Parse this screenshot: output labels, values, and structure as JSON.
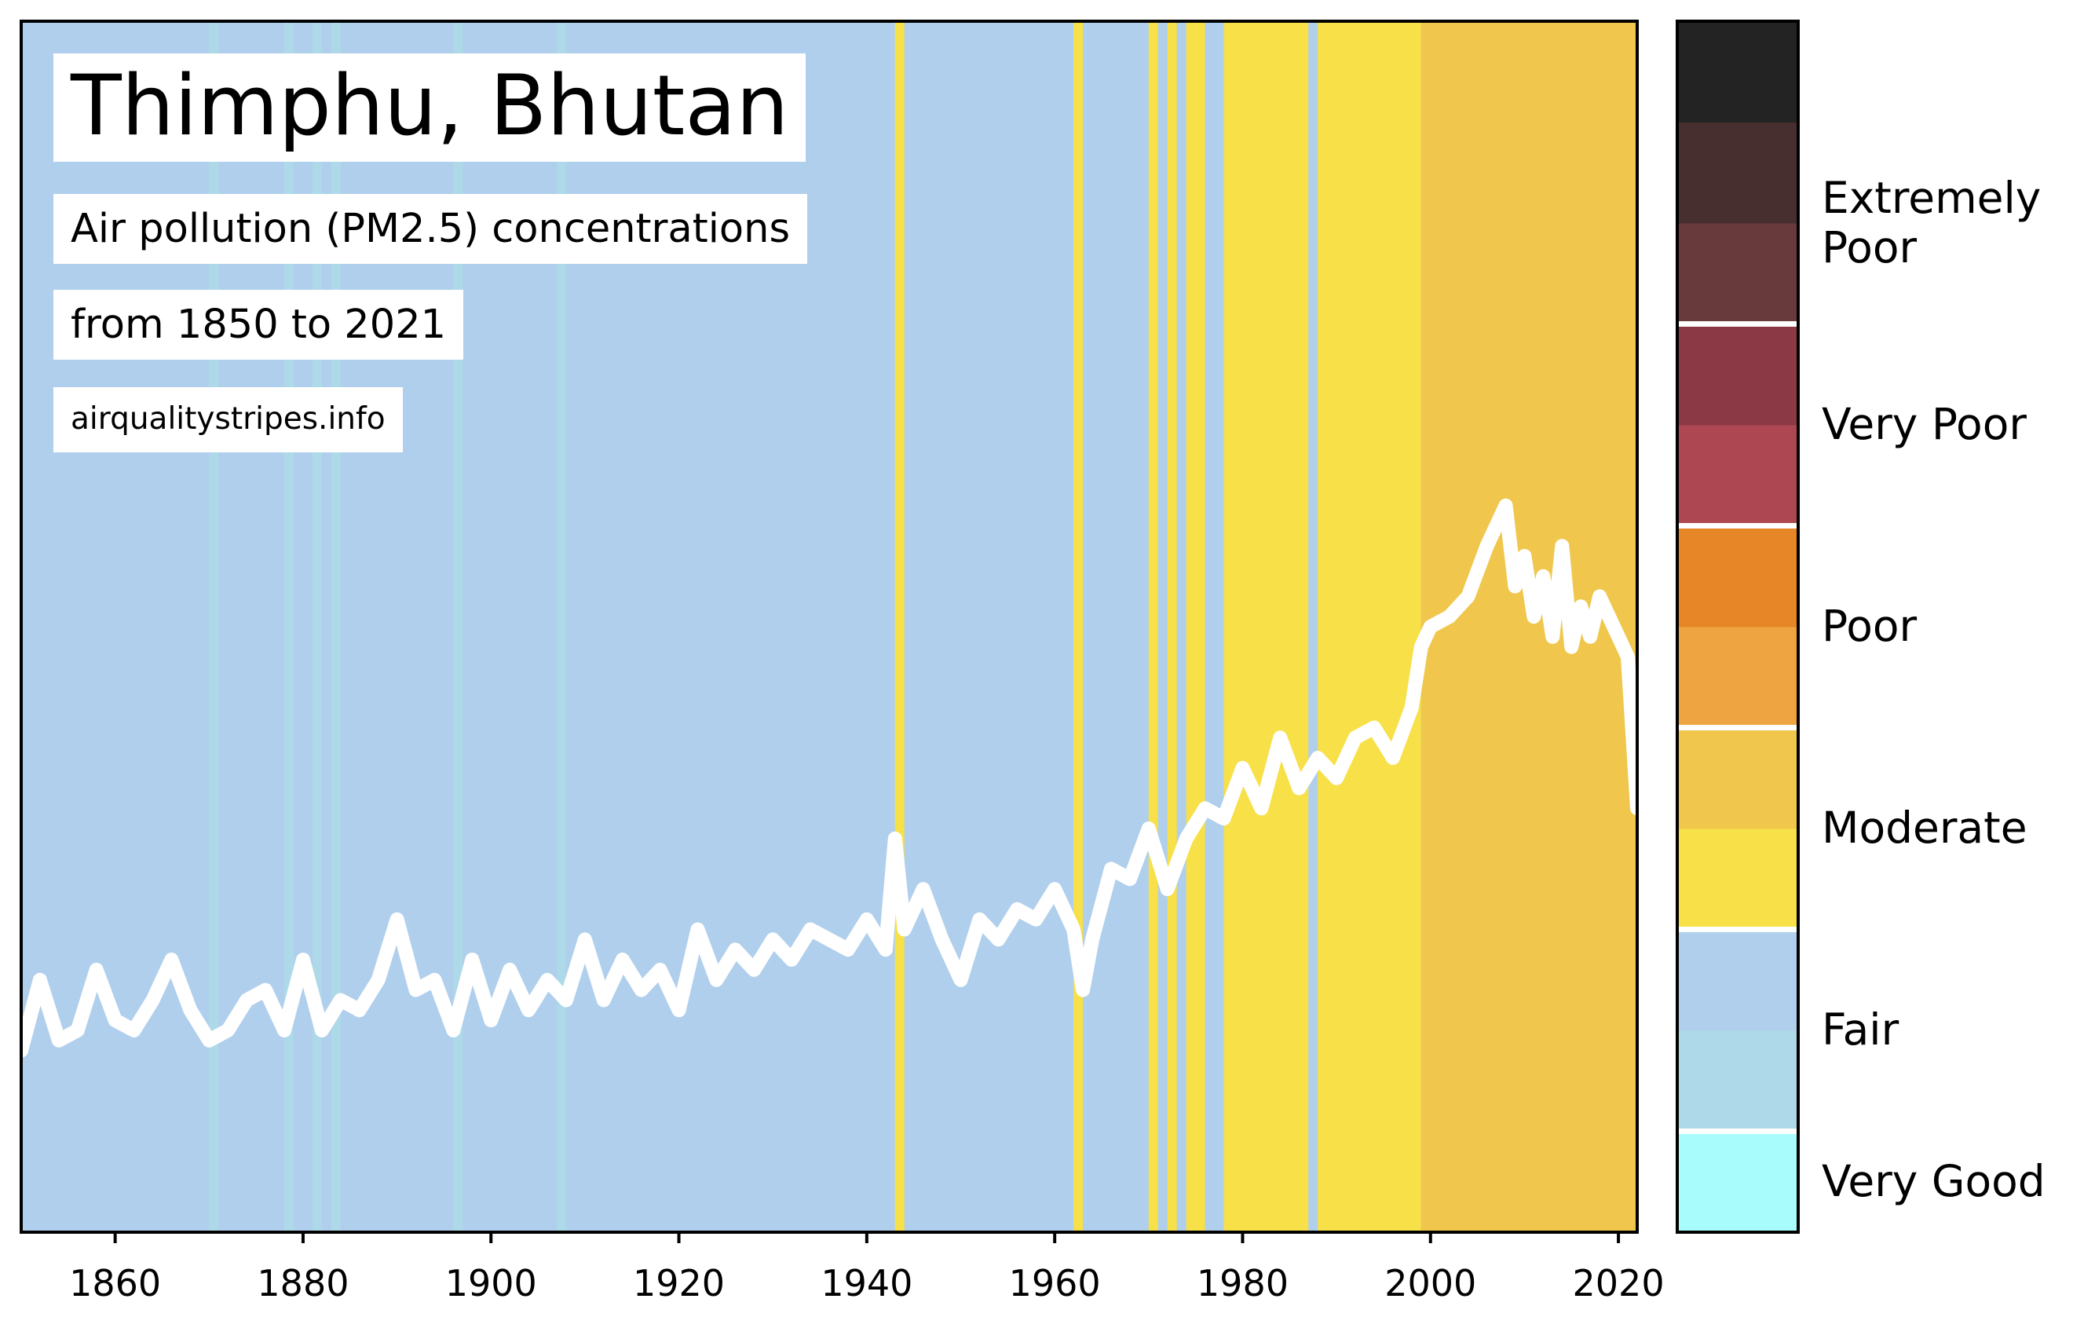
{
  "title": "Thimphu, Bhutan",
  "subtitle": "Air pollution (PM2.5) concentrations",
  "range_text": "from 1850 to 2021",
  "source": "airqualitystripes.info",
  "chart_data": {
    "type": "heatmap",
    "description_units": "PM2.5 concentration category stripes per year with overlaid white trend line",
    "x_range": [
      1850,
      2022
    ],
    "x_ticks": [
      "1860",
      "1880",
      "1900",
      "1920",
      "1940",
      "1960",
      "1980",
      "2000",
      "2020"
    ],
    "grid": false,
    "legend_position": "right",
    "stripes": [
      {
        "from": 1850,
        "to": 2022,
        "category": "Fair"
      },
      {
        "from": 1870,
        "to": 1871,
        "category": "Very Good light"
      },
      {
        "from": 1878,
        "to": 1879,
        "category": "Very Good light"
      },
      {
        "from": 1881,
        "to": 1882,
        "category": "Very Good light"
      },
      {
        "from": 1883,
        "to": 1884,
        "category": "Very Good light"
      },
      {
        "from": 1896,
        "to": 1897,
        "category": "Very Good light"
      },
      {
        "from": 1907,
        "to": 1908,
        "category": "Very Good light"
      },
      {
        "from": 1943,
        "to": 1944,
        "category": "Moderate low"
      },
      {
        "from": 1962,
        "to": 1963,
        "category": "Moderate low"
      },
      {
        "from": 1970,
        "to": 1971,
        "category": "Moderate low"
      },
      {
        "from": 1972,
        "to": 1973,
        "category": "Moderate low"
      },
      {
        "from": 1974,
        "to": 1976,
        "category": "Moderate low"
      },
      {
        "from": 1978,
        "to": 1987,
        "category": "Moderate low"
      },
      {
        "from": 1988,
        "to": 1999,
        "category": "Moderate low"
      },
      {
        "from": 1999,
        "to": 2022,
        "category": "Moderate high"
      }
    ],
    "line": {
      "x": [
        1850,
        1852,
        1854,
        1856,
        1858,
        1860,
        1862,
        1864,
        1866,
        1868,
        1870,
        1872,
        1874,
        1876,
        1878,
        1880,
        1882,
        1884,
        1886,
        1888,
        1890,
        1892,
        1894,
        1896,
        1898,
        1900,
        1902,
        1904,
        1906,
        1908,
        1910,
        1912,
        1914,
        1916,
        1918,
        1920,
        1922,
        1924,
        1926,
        1928,
        1930,
        1932,
        1934,
        1936,
        1938,
        1940,
        1942,
        1943,
        1944,
        1946,
        1948,
        1950,
        1952,
        1954,
        1956,
        1958,
        1960,
        1962,
        1963,
        1964,
        1966,
        1968,
        1970,
        1972,
        1974,
        1976,
        1978,
        1980,
        1982,
        1984,
        1986,
        1988,
        1990,
        1992,
        1994,
        1996,
        1998,
        1999,
        2000,
        2002,
        2004,
        2006,
        2008,
        2009,
        2010,
        2011,
        2012,
        2013,
        2014,
        2015,
        2016,
        2017,
        2018,
        2019,
        2020,
        2021,
        2022
      ],
      "y": [
        0.9,
        1.25,
        0.95,
        1.0,
        1.3,
        1.05,
        1.0,
        1.15,
        1.35,
        1.1,
        0.95,
        1.0,
        1.15,
        1.2,
        1.0,
        1.35,
        1.0,
        1.15,
        1.1,
        1.25,
        1.55,
        1.2,
        1.25,
        1.0,
        1.35,
        1.05,
        1.3,
        1.1,
        1.25,
        1.15,
        1.45,
        1.15,
        1.35,
        1.2,
        1.3,
        1.1,
        1.5,
        1.25,
        1.4,
        1.3,
        1.45,
        1.35,
        1.5,
        1.45,
        1.4,
        1.55,
        1.4,
        1.95,
        1.5,
        1.7,
        1.45,
        1.25,
        1.55,
        1.45,
        1.6,
        1.55,
        1.7,
        1.5,
        1.2,
        1.45,
        1.8,
        1.75,
        2.0,
        1.7,
        1.95,
        2.1,
        2.05,
        2.3,
        2.1,
        2.45,
        2.2,
        2.35,
        2.25,
        2.45,
        2.5,
        2.35,
        2.6,
        2.9,
        3.0,
        3.05,
        3.15,
        3.4,
        3.6,
        3.2,
        3.35,
        3.05,
        3.25,
        2.95,
        3.4,
        2.9,
        3.1,
        2.95,
        3.15,
        3.05,
        2.95,
        2.85,
        2.1
      ]
    },
    "colorbar": {
      "categories": [
        "Very Good",
        "Fair",
        "Moderate",
        "Poor",
        "Very Poor",
        "Extremely Poor"
      ],
      "colors": [
        "#a8fdfc",
        "#aed9e8",
        "#b0cfec",
        "#f7e048",
        "#f0c74c",
        "#efa442",
        "#e78626",
        "#ad4852",
        "#8b3945",
        "#693a3b",
        "#472e2f",
        "#232323"
      ]
    },
    "colors": {
      "Fair": "#b0cfec",
      "Very Good light": "#aed9e8",
      "Moderate low": "#f7e048",
      "Moderate high": "#f0c74c",
      "line": "#ffffff"
    }
  }
}
